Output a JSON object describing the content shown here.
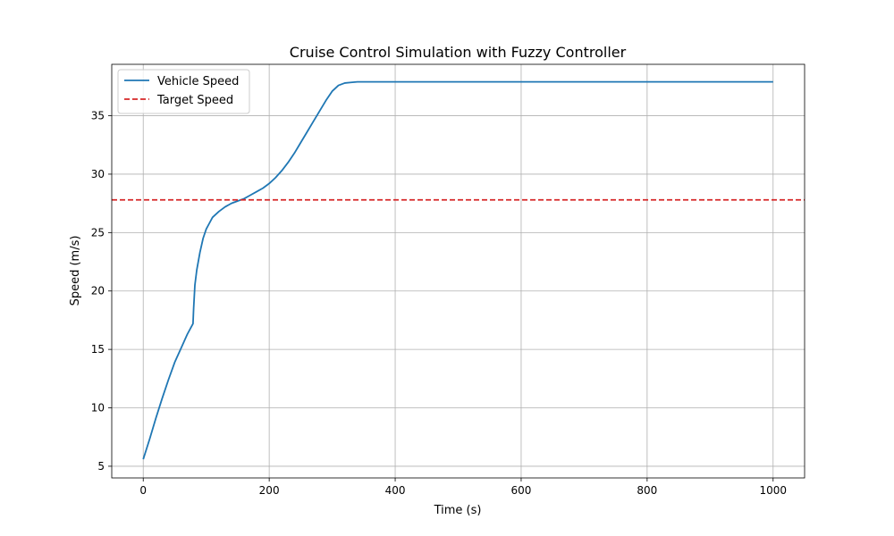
{
  "chart_data": {
    "type": "line",
    "title": "Cruise Control Simulation with Fuzzy Controller",
    "xlabel": "Time (s)",
    "ylabel": "Speed (m/s)",
    "xlim": [
      -50,
      1050
    ],
    "ylim": [
      4.0,
      39.4
    ],
    "xticks": [
      0,
      200,
      400,
      600,
      800,
      1000
    ],
    "yticks": [
      5,
      10,
      15,
      20,
      25,
      30,
      35
    ],
    "grid": true,
    "legend_position": "upper-left",
    "series": [
      {
        "name": "Vehicle Speed",
        "color": "#1f77b4",
        "style": "solid",
        "x": [
          0,
          10,
          20,
          30,
          40,
          50,
          60,
          70,
          79,
          80,
          82,
          85,
          90,
          95,
          100,
          105,
          110,
          120,
          130,
          140,
          150,
          160,
          170,
          180,
          190,
          200,
          210,
          220,
          230,
          240,
          250,
          260,
          270,
          280,
          290,
          300,
          310,
          320,
          330,
          340,
          350,
          360,
          380,
          400,
          500,
          600,
          700,
          800,
          900,
          1000
        ],
        "y": [
          5.6,
          7.3,
          9.1,
          10.8,
          12.4,
          13.9,
          15.1,
          16.3,
          17.2,
          18.5,
          20.5,
          21.8,
          23.3,
          24.5,
          25.3,
          25.8,
          26.3,
          26.8,
          27.2,
          27.5,
          27.7,
          27.9,
          28.2,
          28.5,
          28.8,
          29.2,
          29.7,
          30.3,
          31.0,
          31.8,
          32.7,
          33.6,
          34.5,
          35.4,
          36.3,
          37.1,
          37.6,
          37.8,
          37.85,
          37.9,
          37.9,
          37.9,
          37.9,
          37.9,
          37.9,
          37.9,
          37.9,
          37.9,
          37.9,
          37.9
        ]
      },
      {
        "name": "Target Speed",
        "color": "#d62728",
        "style": "dashed",
        "y_constant": 27.8
      }
    ]
  }
}
